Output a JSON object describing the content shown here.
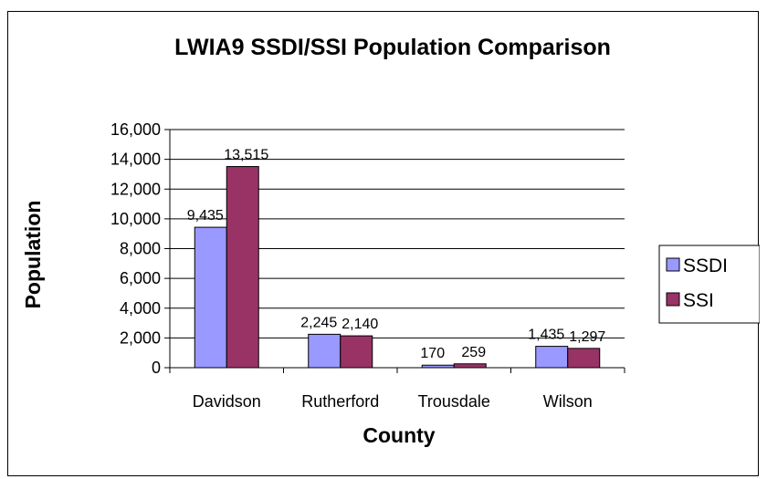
{
  "chart_data": {
    "type": "bar",
    "title": "LWIA9 SSDI/SSI Population Comparison",
    "xlabel": "County",
    "ylabel": "Population",
    "categories": [
      "Davidson",
      "Rutherford",
      "Trousdale",
      "Wilson"
    ],
    "series": [
      {
        "name": "SSDI",
        "values": [
          9435,
          2245,
          170,
          1435
        ],
        "value_labels": [
          "9,435",
          "2,245",
          "170",
          "1,435"
        ],
        "color": "#9999ff"
      },
      {
        "name": "SSI",
        "values": [
          13515,
          2140,
          259,
          1297
        ],
        "value_labels": [
          "13,515",
          "2,140",
          "259",
          "1,297"
        ],
        "color": "#993366"
      }
    ],
    "ylim": [
      0,
      16000
    ],
    "yticks": [
      0,
      2000,
      4000,
      6000,
      8000,
      10000,
      12000,
      14000,
      16000
    ],
    "ytick_labels": [
      "0",
      "2,000",
      "4,000",
      "6,000",
      "8,000",
      "10,000",
      "12,000",
      "14,000",
      "16,000"
    ],
    "grid": true,
    "legend_position": "right"
  }
}
